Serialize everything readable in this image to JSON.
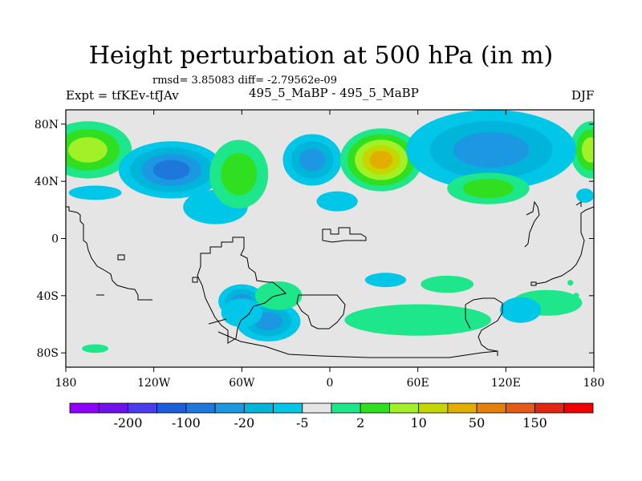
{
  "title": "Height perturbation at 500 hPa (in m)",
  "stats": "rmsd= 3.85083 diff= -2.79562e-09",
  "left_label": "Expt = tfKEv-tfJAv",
  "center_label": "495_5_MaBP - 495_5_MaBP",
  "right_label": "DJF",
  "y_ticks": [
    {
      "label": "80N",
      "lat": 80
    },
    {
      "label": "40N",
      "lat": 40
    },
    {
      "label": "0",
      "lat": 0
    },
    {
      "label": "40S",
      "lat": -40
    },
    {
      "label": "80S",
      "lat": -80
    }
  ],
  "x_ticks": [
    {
      "label": "180",
      "lon": -180
    },
    {
      "label": "120W",
      "lon": -120
    },
    {
      "label": "60W",
      "lon": -60
    },
    {
      "label": "0",
      "lon": 0
    },
    {
      "label": "60E",
      "lon": 60
    },
    {
      "label": "120E",
      "lon": 120
    },
    {
      "label": "180",
      "lon": 180
    }
  ],
  "colorbar": {
    "colors": [
      "#8f00ff",
      "#7010ea",
      "#4b3dee",
      "#1b5edc",
      "#1e78dc",
      "#1c98e2",
      "#00b4da",
      "#00c7e8",
      "#e5e5e5",
      "#1ee68a",
      "#30e020",
      "#a2f026",
      "#c4d800",
      "#e3ae00",
      "#e5800a",
      "#e55a14",
      "#e42512",
      "#f00000"
    ],
    "labels": [
      {
        "text": "-200",
        "after_box": 2
      },
      {
        "text": "-100",
        "after_box": 4
      },
      {
        "text": "-20",
        "after_box": 6
      },
      {
        "text": "-5",
        "after_box": 8
      },
      {
        "text": "2",
        "after_box": 10
      },
      {
        "text": "10",
        "after_box": 12
      },
      {
        "text": "50",
        "after_box": 14
      },
      {
        "text": "150",
        "after_box": 16
      }
    ]
  },
  "background_color": "#e5e5e5",
  "anomalies": [
    {
      "lon": -165,
      "lat": 62,
      "rx": 30,
      "ry": 20,
      "levels": [
        9,
        10,
        11
      ]
    },
    {
      "lon": 178,
      "lat": 62,
      "rx": 14,
      "ry": 20,
      "levels": [
        9,
        10,
        11
      ]
    },
    {
      "lon": -108,
      "lat": 48,
      "rx": 36,
      "ry": 20,
      "levels": [
        7,
        6,
        5,
        4
      ]
    },
    {
      "lon": -78,
      "lat": 22,
      "rx": 22,
      "ry": 12,
      "levels": [
        7
      ]
    },
    {
      "lon": -62,
      "lat": 45,
      "rx": 20,
      "ry": 24,
      "levels": [
        9,
        10
      ]
    },
    {
      "lon": -12,
      "lat": 55,
      "rx": 20,
      "ry": 18,
      "levels": [
        7,
        6,
        5
      ]
    },
    {
      "lon": 35,
      "lat": 55,
      "rx": 28,
      "ry": 22,
      "levels": [
        9,
        10,
        11,
        12,
        13
      ]
    },
    {
      "lon": 110,
      "lat": 62,
      "rx": 58,
      "ry": 28,
      "levels": [
        7,
        6,
        5
      ]
    },
    {
      "lon": 108,
      "lat": 35,
      "rx": 28,
      "ry": 11,
      "levels": [
        9,
        10
      ]
    },
    {
      "lon": 5,
      "lat": 26,
      "rx": 14,
      "ry": 7,
      "levels": [
        7
      ]
    },
    {
      "lon": -160,
      "lat": 32,
      "rx": 18,
      "ry": 5,
      "levels": [
        7
      ]
    },
    {
      "lon": 174,
      "lat": 30,
      "rx": 6,
      "ry": 5,
      "levels": [
        7
      ]
    },
    {
      "lon": -60,
      "lat": -44,
      "rx": 16,
      "ry": 12,
      "levels": [
        7,
        6,
        5
      ]
    },
    {
      "lon": -42,
      "lat": -58,
      "rx": 22,
      "ry": 14,
      "levels": [
        7,
        6,
        5
      ]
    },
    {
      "lon": -60,
      "lat": -52,
      "rx": 14,
      "ry": 10,
      "levels": [
        7
      ]
    },
    {
      "lon": -35,
      "lat": -40,
      "rx": 16,
      "ry": 10,
      "levels": [
        9
      ]
    },
    {
      "lon": 60,
      "lat": -57,
      "rx": 50,
      "ry": 11,
      "levels": [
        9
      ]
    },
    {
      "lon": 38,
      "lat": -29,
      "rx": 14,
      "ry": 5,
      "levels": [
        7
      ]
    },
    {
      "lon": 80,
      "lat": -32,
      "rx": 18,
      "ry": 6,
      "levels": [
        9
      ]
    },
    {
      "lon": 148,
      "lat": -45,
      "rx": 24,
      "ry": 9,
      "levels": [
        9
      ]
    },
    {
      "lon": 130,
      "lat": -50,
      "rx": 14,
      "ry": 9,
      "levels": [
        7
      ]
    },
    {
      "lon": -160,
      "lat": -77,
      "rx": 9,
      "ry": 3,
      "levels": [
        9
      ]
    },
    {
      "lon": 164,
      "lat": -31,
      "rx": 2,
      "ry": 2,
      "levels": [
        9
      ]
    },
    {
      "lon": 168,
      "lat": -40,
      "rx": 2,
      "ry": 2,
      "levels": [
        9
      ]
    }
  ]
}
